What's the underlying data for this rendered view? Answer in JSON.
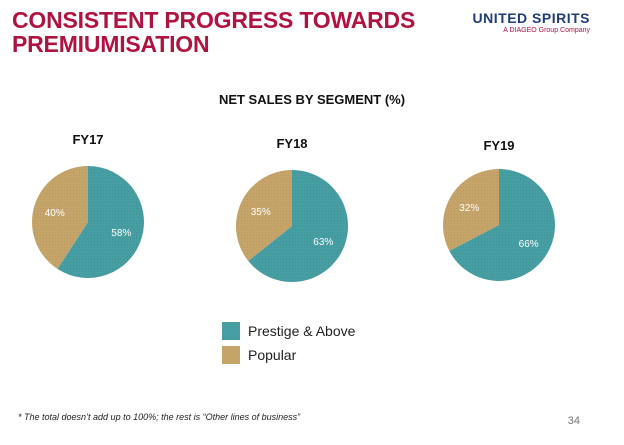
{
  "slide": {
    "title_lines": [
      "CONSISTENT PROGRESS TOWARDS",
      "PREMIUMISATION"
    ],
    "logo_main": "UNITED SPIRITS",
    "logo_sub": "A DIAGEO Group Company",
    "footnote": "* The total doesn’t add up to 100%; the rest is “Other lines of business”",
    "page_number": "34"
  },
  "colors": {
    "title": "#b0133f",
    "logo": "#1f3d7a",
    "prestige": "#469ea3",
    "popular": "#c5a46a"
  },
  "chart_data": {
    "type": "pie",
    "title": "NET SALES BY SEGMENT (%)",
    "series_names": [
      "Prestige & Above",
      "Popular"
    ],
    "charts": [
      {
        "label": "FY17",
        "prestige": 58,
        "popular": 40,
        "prestige_label": "58%",
        "popular_label": "40%"
      },
      {
        "label": "FY18",
        "prestige": 63,
        "popular": 35,
        "prestige_label": "63%",
        "popular_label": "35%"
      },
      {
        "label": "FY19",
        "prestige": 66,
        "popular": 32,
        "prestige_label": "66%",
        "popular_label": "32%"
      }
    ],
    "legend_position": "bottom-center"
  }
}
